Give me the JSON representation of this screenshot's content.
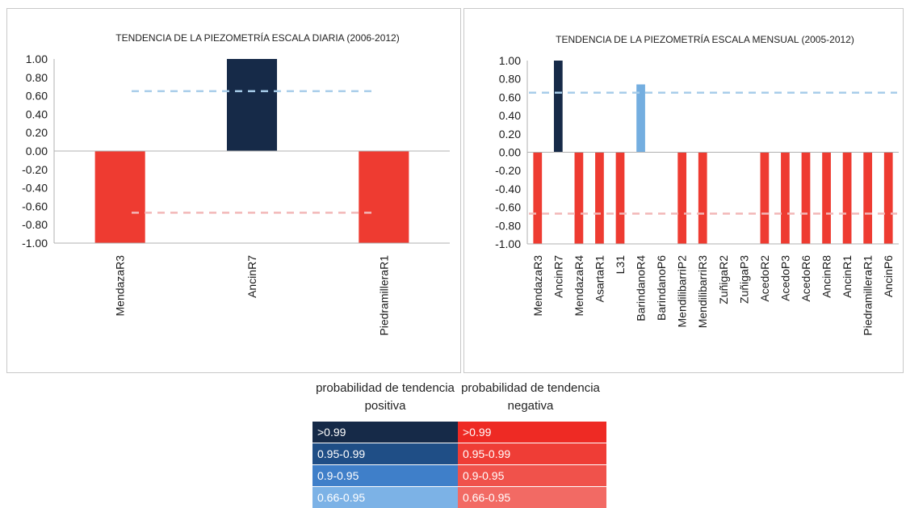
{
  "chart_data": [
    {
      "type": "bar",
      "title": "TENDENCIA DE LA PIEZOMETRÍA ESCALA DIARIA (2006-2012)",
      "categories": [
        "MendazaR3",
        "AncinR7",
        "PiedramilleraR1"
      ],
      "values": [
        -1.0,
        1.0,
        -1.0
      ],
      "bar_colors": [
        "#ee3b31",
        "#162a48",
        "#ee3b31"
      ],
      "ylim": [
        -1.0,
        1.0
      ],
      "yticks": [
        "1.00",
        "0.80",
        "0.60",
        "0.40",
        "0.20",
        "0.00",
        "-0.20",
        "-0.40",
        "-0.60",
        "-0.80",
        "-1.00"
      ],
      "reference_lines": [
        {
          "value": 0.65,
          "color": "#a8cdea"
        },
        {
          "value": -0.67,
          "color": "#f2b7b7"
        }
      ]
    },
    {
      "type": "bar",
      "title": "TENDENCIA DE LA PIEZOMETRÍA ESCALA MENSUAL (2005-2012)",
      "categories": [
        "MendazaR3",
        "AncinR7",
        "MendazaR4",
        "AsartaR1",
        "L31",
        "BarindanoR4",
        "BarindanoP6",
        "MendilibarriP2",
        "MendilibarriR3",
        "ZuñigaR2",
        "ZuñigaP3",
        "AcedoR2",
        "AcedoP3",
        "AcedoR6",
        "AncinR8",
        "AncinR1",
        "PiedramilleraR1",
        "AncinP6"
      ],
      "values": [
        -1.0,
        1.0,
        -1.0,
        -1.0,
        -1.0,
        0.74,
        0,
        -1.0,
        -1.0,
        0,
        0,
        -1.0,
        -1.0,
        -1.0,
        -1.0,
        -1.0,
        -1.0,
        -1.0
      ],
      "bar_colors": [
        "#ee3b31",
        "#162a48",
        "#ee3b31",
        "#ee3b31",
        "#ee3b31",
        "#74aee0",
        "#ffffff",
        "#ee3b31",
        "#ee3b31",
        "#ffffff",
        "#ffffff",
        "#ee3b31",
        "#ee3b31",
        "#ee3b31",
        "#ee3b31",
        "#ee3b31",
        "#ee3b31",
        "#ee3b31"
      ],
      "ylim": [
        -1.0,
        1.0
      ],
      "yticks": [
        "1.00",
        "0.80",
        "0.60",
        "0.40",
        "0.20",
        "0.00",
        "-0.20",
        "-0.40",
        "-0.60",
        "-0.80",
        "-1.00"
      ],
      "reference_lines": [
        {
          "value": 0.65,
          "color": "#a8cdea"
        },
        {
          "value": -0.67,
          "color": "#f2b7b7"
        }
      ]
    }
  ],
  "legend": {
    "positive_header": "probabilidad de tendencia positiva",
    "negative_header": "probabilidad de tendencia negativa",
    "positive_rows": [
      {
        "label": ">0.99",
        "color": "#162a48"
      },
      {
        "label": "0.95-0.99",
        "color": "#1f4e86"
      },
      {
        "label": "0.9-0.95",
        "color": "#3f7fc9"
      },
      {
        "label": "0.66-0.95",
        "color": "#7cb2e6"
      }
    ],
    "negative_rows": [
      {
        "label": ">0.99",
        "color": "#ee2a24"
      },
      {
        "label": "0.95-0.99",
        "color": "#ef3d36"
      },
      {
        "label": "0.9-0.95",
        "color": "#f0524b"
      },
      {
        "label": "0.66-0.95",
        "color": "#f26a64"
      }
    ]
  }
}
